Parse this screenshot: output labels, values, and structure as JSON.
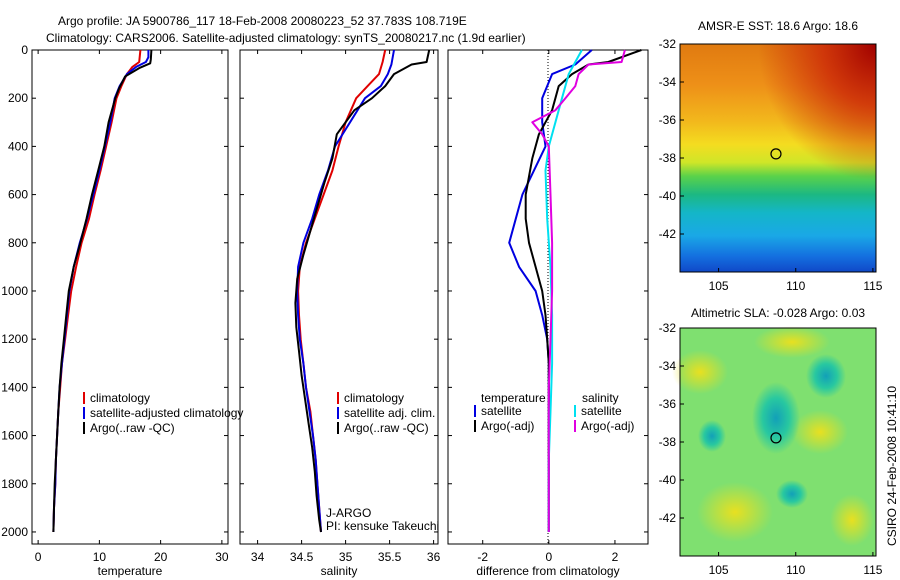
{
  "header": {
    "line1": "Argo profile: JA 5900786_117 18-Feb-2008 20080223_52 37.783S 108.719E",
    "line2": "Climatology: CARS2006. Satellite-adjusted climatology: synTS_20080217.nc (1.9d earlier)"
  },
  "side_label": "CSIRO 24-Feb-2008 10:41:10",
  "credit": {
    "line1": "J-ARGO",
    "line2": "PI: kensuke Takeuchi"
  },
  "colors": {
    "climatology": "#e00000",
    "satellite": "#0000e0",
    "argo": "#000000",
    "sat_diff_salinity": "#00e0f0",
    "argo_diff_salinity": "#e000e0"
  },
  "chart_data": [
    {
      "type": "line",
      "xlabel": "temperature",
      "xlim": [
        -1,
        31
      ],
      "ylim": [
        0,
        2050
      ],
      "y_reversed": true,
      "xticks": [
        0,
        10,
        20,
        30
      ],
      "yticks": [
        0,
        200,
        400,
        600,
        800,
        1000,
        1200,
        1400,
        1600,
        1800,
        2000
      ],
      "legend": [
        "climatology",
        "satellite-adjusted climatology",
        "Argo(..raw -QC)"
      ],
      "series": [
        {
          "name": "climatology",
          "color": "red",
          "points": [
            [
              16.7,
              0
            ],
            [
              16.5,
              50
            ],
            [
              15.4,
              70
            ],
            [
              14.5,
              100
            ],
            [
              13.6,
              150
            ],
            [
              12.8,
              200
            ],
            [
              12.0,
              300
            ],
            [
              11.1,
              400
            ],
            [
              10.2,
              500
            ],
            [
              9.2,
              600
            ],
            [
              8.3,
              700
            ],
            [
              7.1,
              800
            ],
            [
              6.2,
              900
            ],
            [
              5.4,
              1000
            ],
            [
              4.9,
              1100
            ],
            [
              4.4,
              1200
            ],
            [
              3.9,
              1300
            ],
            [
              3.6,
              1400
            ],
            [
              3.3,
              1500
            ],
            [
              3.1,
              1600
            ],
            [
              2.9,
              1700
            ],
            [
              2.8,
              1800
            ],
            [
              2.6,
              1900
            ],
            [
              2.5,
              2000
            ]
          ]
        },
        {
          "name": "satellite-adjusted climatology",
          "color": "blue",
          "points": [
            [
              18.0,
              0
            ],
            [
              18.0,
              30
            ],
            [
              17.6,
              50
            ],
            [
              16.0,
              70
            ],
            [
              14.5,
              100
            ],
            [
              13.3,
              150
            ],
            [
              12.5,
              200
            ],
            [
              11.8,
              300
            ],
            [
              10.9,
              400
            ],
            [
              10.0,
              500
            ],
            [
              9.0,
              600
            ],
            [
              8.0,
              700
            ],
            [
              6.8,
              800
            ],
            [
              5.8,
              900
            ],
            [
              5.1,
              1000
            ],
            [
              4.7,
              1100
            ],
            [
              4.3,
              1200
            ],
            [
              3.9,
              1300
            ],
            [
              3.5,
              1400
            ],
            [
              3.3,
              1500
            ],
            [
              3.1,
              1600
            ],
            [
              2.9,
              1700
            ],
            [
              2.8,
              1800
            ],
            [
              2.6,
              1900
            ],
            [
              2.5,
              2000
            ]
          ]
        },
        {
          "name": "Argo(..raw -QC)",
          "color": "black",
          "points": [
            [
              18.5,
              0
            ],
            [
              18.4,
              40
            ],
            [
              18.3,
              55
            ],
            [
              16.5,
              75
            ],
            [
              14.2,
              110
            ],
            [
              13.2,
              160
            ],
            [
              12.6,
              200
            ],
            [
              11.5,
              300
            ],
            [
              10.8,
              400
            ],
            [
              9.8,
              500
            ],
            [
              8.8,
              600
            ],
            [
              7.9,
              700
            ],
            [
              6.9,
              800
            ],
            [
              5.8,
              900
            ],
            [
              5.0,
              1000
            ],
            [
              4.6,
              1100
            ],
            [
              4.2,
              1200
            ],
            [
              3.8,
              1300
            ],
            [
              3.5,
              1400
            ],
            [
              3.3,
              1500
            ],
            [
              3.1,
              1600
            ],
            [
              2.9,
              1700
            ],
            [
              2.7,
              1800
            ],
            [
              2.6,
              1900
            ],
            [
              2.5,
              2000
            ]
          ]
        }
      ]
    },
    {
      "type": "line",
      "xlabel": "salinity",
      "xlim": [
        33.8,
        36.05
      ],
      "ylim": [
        0,
        2050
      ],
      "y_reversed": true,
      "xticks": [
        34,
        34.5,
        35,
        35.5,
        36
      ],
      "legend": [
        "climatology",
        "satellite adj. clim.",
        "Argo(..raw -QC)"
      ],
      "series": [
        {
          "name": "climatology",
          "color": "red",
          "points": [
            [
              35.45,
              0
            ],
            [
              35.42,
              50
            ],
            [
              35.38,
              100
            ],
            [
              35.25,
              150
            ],
            [
              35.12,
              200
            ],
            [
              35.0,
              300
            ],
            [
              34.92,
              400
            ],
            [
              34.85,
              500
            ],
            [
              34.75,
              600
            ],
            [
              34.65,
              700
            ],
            [
              34.55,
              800
            ],
            [
              34.48,
              900
            ],
            [
              34.46,
              1000
            ],
            [
              34.47,
              1100
            ],
            [
              34.49,
              1200
            ],
            [
              34.52,
              1300
            ],
            [
              34.55,
              1400
            ],
            [
              34.6,
              1500
            ],
            [
              34.63,
              1600
            ],
            [
              34.66,
              1700
            ],
            [
              34.68,
              1800
            ],
            [
              34.7,
              1900
            ],
            [
              34.72,
              2000
            ]
          ]
        },
        {
          "name": "satellite adj. clim.",
          "color": "blue",
          "points": [
            [
              35.55,
              0
            ],
            [
              35.52,
              60
            ],
            [
              35.48,
              100
            ],
            [
              35.4,
              150
            ],
            [
              35.22,
              200
            ],
            [
              35.05,
              300
            ],
            [
              34.88,
              400
            ],
            [
              34.8,
              500
            ],
            [
              34.7,
              600
            ],
            [
              34.62,
              700
            ],
            [
              34.52,
              800
            ],
            [
              34.46,
              900
            ],
            [
              34.45,
              1000
            ],
            [
              34.46,
              1100
            ],
            [
              34.48,
              1200
            ],
            [
              34.52,
              1300
            ],
            [
              34.55,
              1400
            ],
            [
              34.59,
              1500
            ],
            [
              34.63,
              1600
            ],
            [
              34.66,
              1700
            ],
            [
              34.68,
              1800
            ],
            [
              34.7,
              1900
            ],
            [
              34.72,
              2000
            ]
          ]
        },
        {
          "name": "Argo(..raw -QC)",
          "color": "black",
          "points": [
            [
              35.95,
              0
            ],
            [
              35.92,
              50
            ],
            [
              35.75,
              60
            ],
            [
              35.55,
              100
            ],
            [
              35.45,
              150
            ],
            [
              35.3,
              200
            ],
            [
              35.1,
              250
            ],
            [
              34.9,
              350
            ],
            [
              34.85,
              450
            ],
            [
              34.76,
              550
            ],
            [
              34.68,
              650
            ],
            [
              34.6,
              750
            ],
            [
              34.52,
              850
            ],
            [
              34.45,
              950
            ],
            [
              34.43,
              1050
            ],
            [
              34.44,
              1150
            ],
            [
              34.47,
              1250
            ],
            [
              34.5,
              1350
            ],
            [
              34.54,
              1450
            ],
            [
              34.58,
              1550
            ],
            [
              34.62,
              1650
            ],
            [
              34.65,
              1750
            ],
            [
              34.67,
              1850
            ],
            [
              34.7,
              1950
            ],
            [
              34.72,
              2000
            ]
          ]
        }
      ]
    },
    {
      "type": "line",
      "xlabel": "difference from climatology",
      "xlim": [
        -3.05,
        3.0
      ],
      "ylim": [
        0,
        2050
      ],
      "y_reversed": true,
      "xticks": [
        -2,
        0,
        2
      ],
      "zero_line": "dotted",
      "legend_columns": [
        {
          "title": "temperature",
          "items": [
            "satellite",
            "Argo(-adj)"
          ]
        },
        {
          "title": "salinity",
          "items": [
            "satellite",
            "Argo(-adj)"
          ]
        }
      ],
      "series": [
        {
          "name": "temperature satellite",
          "color": "blue",
          "points": [
            [
              1.3,
              0
            ],
            [
              0.8,
              60
            ],
            [
              0.1,
              100
            ],
            [
              -0.2,
              200
            ],
            [
              -0.2,
              300
            ],
            [
              -0.1,
              400
            ],
            [
              -0.8,
              600
            ],
            [
              -1.0,
              700
            ],
            [
              -1.2,
              800
            ],
            [
              -0.9,
              900
            ],
            [
              -0.4,
              1000
            ],
            [
              -0.2,
              1100
            ],
            [
              -0.05,
              1200
            ],
            [
              0,
              1300
            ],
            [
              0,
              1400
            ],
            [
              0,
              1500
            ],
            [
              0,
              1700
            ],
            [
              0,
              2000
            ]
          ]
        },
        {
          "name": "temperature Argo(-adj)",
          "color": "black",
          "points": [
            [
              2.8,
              0
            ],
            [
              1.8,
              50
            ],
            [
              1.2,
              60
            ],
            [
              0.7,
              100
            ],
            [
              0.3,
              150
            ],
            [
              0.2,
              200
            ],
            [
              0.1,
              250
            ],
            [
              -0.3,
              350
            ],
            [
              -0.5,
              450
            ],
            [
              -0.7,
              600
            ],
            [
              -0.7,
              700
            ],
            [
              -0.6,
              800
            ],
            [
              -0.4,
              900
            ],
            [
              -0.2,
              1000
            ],
            [
              -0.1,
              1100
            ],
            [
              -0.05,
              1200
            ],
            [
              0,
              1300
            ],
            [
              0,
              1400
            ],
            [
              0,
              1500
            ],
            [
              0,
              1700
            ],
            [
              0,
              2000
            ]
          ]
        },
        {
          "name": "salinity satellite",
          "color": "cyan",
          "points": [
            [
              1.0,
              0
            ],
            [
              0.8,
              50
            ],
            [
              0.6,
              100
            ],
            [
              0.4,
              200
            ],
            [
              0.2,
              300
            ],
            [
              0.0,
              400
            ],
            [
              -0.1,
              500
            ],
            [
              -0.05,
              700
            ],
            [
              0.05,
              900
            ],
            [
              0.1,
              1100
            ],
            [
              0.1,
              1300
            ],
            [
              0.05,
              1500
            ],
            [
              0,
              1700
            ],
            [
              0,
              2000
            ]
          ]
        },
        {
          "name": "salinity Argo(-adj)",
          "color": "magenta",
          "points": [
            [
              2.3,
              0
            ],
            [
              2.2,
              50
            ],
            [
              1.2,
              60
            ],
            [
              0.9,
              100
            ],
            [
              0.8,
              150
            ],
            [
              0.5,
              200
            ],
            [
              0.2,
              250
            ],
            [
              -0.5,
              300
            ],
            [
              -0.2,
              350
            ],
            [
              0,
              400
            ],
            [
              0.05,
              600
            ],
            [
              0.1,
              800
            ],
            [
              0.1,
              1000
            ],
            [
              0.05,
              1200
            ],
            [
              0,
              1400
            ],
            [
              0,
              2000
            ]
          ]
        }
      ]
    },
    {
      "type": "heatmap",
      "title": "AMSR-E SST: 18.6 Argo: 18.6",
      "xlim": [
        102.5,
        115.2
      ],
      "ylim": [
        -44,
        -32
      ],
      "xticks": [
        105,
        110,
        115
      ],
      "yticks": [
        -32,
        -34,
        -36,
        -38,
        -40,
        -42
      ],
      "marker": {
        "lon": 108.719,
        "lat": -37.783
      }
    },
    {
      "type": "heatmap",
      "title": "Altimetric SLA: -0.028 Argo: 0.03",
      "xlim": [
        102.5,
        115.2
      ],
      "ylim": [
        -44,
        -32
      ],
      "xticks": [
        105,
        110,
        115
      ],
      "yticks": [
        -32,
        -34,
        -36,
        -38,
        -40,
        -42
      ],
      "marker": {
        "lon": 108.719,
        "lat": -37.783
      }
    }
  ]
}
